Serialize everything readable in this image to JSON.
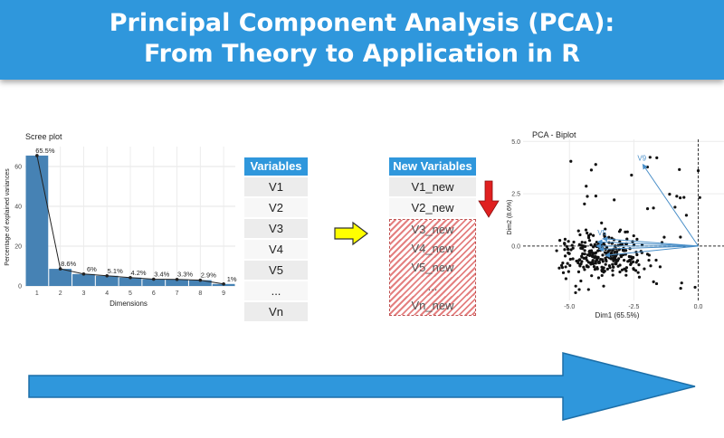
{
  "header": {
    "title_line1": "Principal Component Analysis (PCA):",
    "title_line2": "From Theory to Application in R"
  },
  "colors": {
    "banner": "#2f97dc",
    "bar": "#4682b4",
    "yellow_arrow": "#ffff00",
    "red_arrow": "#e02020",
    "big_arrow": "#2f97dc"
  },
  "chart_data": [
    {
      "type": "bar",
      "title": "Scree plot",
      "xlabel": "Dimensions",
      "ylabel": "Percentage of explained variances",
      "categories": [
        "1",
        "2",
        "3",
        "4",
        "5",
        "6",
        "7",
        "8",
        "9"
      ],
      "values": [
        65.5,
        8.6,
        6,
        5.1,
        4.2,
        3.4,
        3.3,
        2.9,
        1
      ],
      "data_labels": [
        "65.5%",
        "8.6%",
        "6%",
        "5.1%",
        "4.2%",
        "3.4%",
        "3.3%",
        "2.9%",
        "1%"
      ],
      "yticks": [
        "0",
        "20",
        "40",
        "60"
      ],
      "ylim": [
        0,
        70
      ],
      "grid": true
    },
    {
      "type": "scatter",
      "title": "PCA - Biplot",
      "xlabel": "Dim1 (65.5%)",
      "ylabel": "Dim2 (8.6%)",
      "xticks": [
        "-5.0",
        "-2.5",
        "0.0"
      ],
      "yticks": [
        "5.0",
        "2.5",
        "0.0"
      ],
      "xlim": [
        -6.8,
        1.0
      ],
      "ylim": [
        -2.6,
        5.1
      ],
      "vectors": [
        {
          "name": "V9",
          "x": -2.15,
          "y": 3.9
        },
        {
          "name": "V5",
          "x": -3.7,
          "y": 0.35
        },
        {
          "name": "",
          "x": -3.9,
          "y": 0.2
        },
        {
          "name": "",
          "x": -3.95,
          "y": 0.0
        },
        {
          "name": "",
          "x": -3.85,
          "y": -0.15
        },
        {
          "name": "",
          "x": -3.6,
          "y": -0.45
        }
      ]
    }
  ],
  "variables_table": {
    "header": "Variables",
    "items": [
      "V1",
      "V2",
      "V3",
      "V4",
      "V5",
      "...",
      "Vn"
    ]
  },
  "new_variables_table": {
    "header": "New Variables",
    "kept": [
      "V1_new",
      "V2_new"
    ],
    "dropped": [
      "V3_new",
      "V4_new",
      "V5_new",
      "...",
      "Vn_new"
    ]
  }
}
